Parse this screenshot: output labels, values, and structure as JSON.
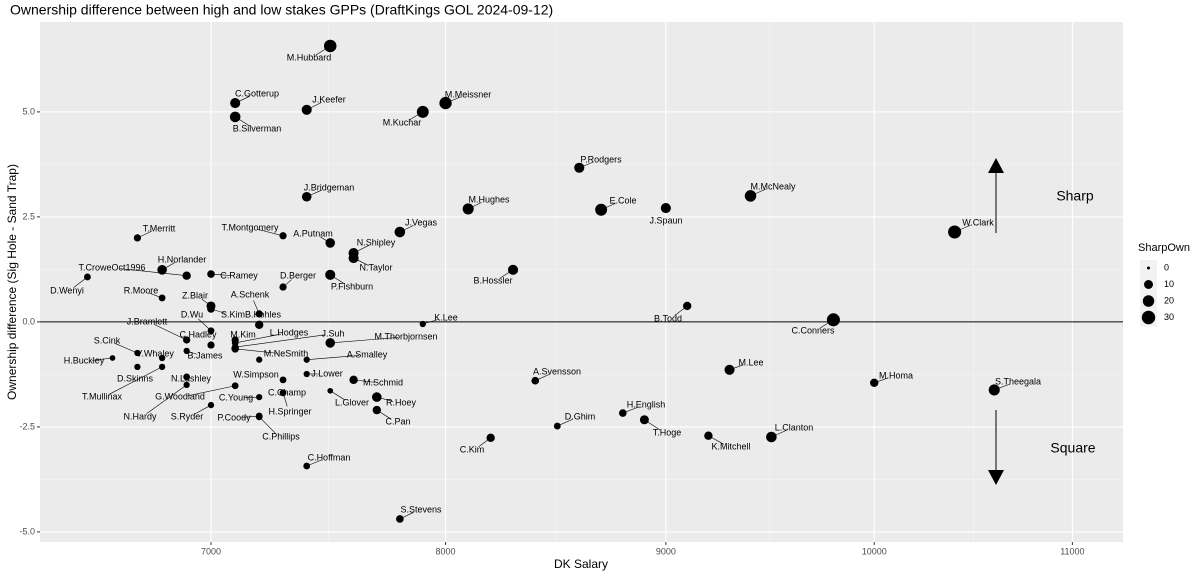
{
  "chart_data": {
    "type": "scatter",
    "title": "Ownership difference between high and low stakes GPPs (DraftKings GOL 2024-09-12)",
    "x_label": "DK Salary",
    "y_label": "Ownership difference (Sig Hole - Sand Trap)",
    "xscale": "sqrt",
    "xlim": [
      6313,
      11263
    ],
    "ylim": [
      -5.24,
      7.14
    ],
    "xticks": [
      7000,
      8000,
      9000,
      10000,
      11000
    ],
    "yticks": [
      {
        "value": -5,
        "label": "-5.0"
      },
      {
        "value": -2.5,
        "label": "-2.5"
      },
      {
        "value": 0,
        "label": "0.0"
      },
      {
        "value": 2.5,
        "label": "2.5"
      },
      {
        "value": 5,
        "label": "5.0"
      }
    ],
    "grid": true,
    "hline": 0,
    "color": "#000000",
    "legend_position": "right",
    "size_legend": {
      "title": "SharpOwn",
      "values": [
        0,
        10,
        20,
        30
      ]
    },
    "annotations": [
      "Sharp",
      "Square"
    ],
    "labels": [
      "M.Hubbard",
      "C.Gotterup",
      "J.Keefer",
      "B.Silverman",
      "M.Kuchar",
      "M.Meissner",
      "P.Rodgers",
      "J.Bridgeman",
      "M.McNealy",
      "E.Cole",
      "J.Spaun",
      "M.Hughes",
      "W.Clark",
      "T.Merritt",
      "T.Montgomery",
      "J.Vegas",
      "A.Putnam",
      "N.Shipley",
      "N.Taylor",
      "B.Hossler",
      "H.Norlander",
      "T.CroweOct1996",
      "C.Ramey",
      "D.Berger",
      "P.Fishburn",
      "D.Wenyi",
      "R.Moore",
      "Z.Blair",
      "S.Kim",
      "A.Schenk",
      "B.Kohles",
      "B.Todd",
      "C.Conners",
      "K.Lee",
      "D.Wu",
      "J.Bramlett",
      "C.Hadley",
      "M.Kim",
      "L.Hodges",
      "J.Suh",
      "M.Thorbjornsen",
      "M.NeSmith",
      "B.James",
      "S.Cink",
      "V.Whaley",
      "H.Buckley",
      "A.Smalley",
      "W.Simpson",
      "J.Lower",
      "D.Skinns",
      "N.Lashley",
      "M.Schmid",
      "A.Svensson",
      "M.Lee",
      "M.Homa",
      "S.Theegala",
      "T.Mullinax",
      "G.Woodland",
      "C.Young",
      "C.Champ",
      "H.Springer",
      "L.Glover",
      "R.Hoey",
      "N.Hardy",
      "S.Ryder",
      "P.Coody",
      "C.Pan",
      "D.Ghim",
      "H.English",
      "T.Hoge",
      "K.Mitchell",
      "L.Clanton",
      "C.Kim",
      "C.Phillips",
      "C.Hoffman",
      "S.Stevens"
    ],
    "x": [
      7500,
      7100,
      7400,
      7100,
      7900,
      8000,
      8600,
      7400,
      9400,
      8700,
      9000,
      8100,
      10400,
      6700,
      7300,
      7800,
      7500,
      7600,
      7600,
      8300,
      6800,
      6900,
      7000,
      7300,
      7500,
      6500,
      6800,
      7000,
      7000,
      7200,
      7200,
      9100,
      9800,
      7900,
      7000,
      6900,
      7000,
      7100,
      7100,
      7100,
      7500,
      7100,
      6900,
      6700,
      6800,
      6600,
      7400,
      7200,
      7400,
      6700,
      6900,
      7600,
      8400,
      9300,
      10000,
      10600,
      6800,
      7100,
      7200,
      7300,
      7300,
      7500,
      7700,
      6900,
      7000,
      7200,
      7700,
      8500,
      8800,
      8900,
      9200,
      9500,
      8200,
      7200,
      7400,
      7800
    ],
    "values": [
      6.57,
      5.21,
      5.05,
      4.88,
      5.0,
      5.21,
      3.67,
      2.98,
      3.0,
      2.67,
      2.71,
      2.69,
      2.14,
      2.0,
      2.05,
      2.14,
      1.88,
      1.64,
      1.52,
      1.24,
      1.24,
      1.1,
      1.14,
      0.83,
      1.12,
      1.07,
      0.57,
      0.38,
      0.31,
      0.19,
      -0.07,
      0.38,
      0.05,
      -0.05,
      -0.21,
      -0.43,
      -0.55,
      -0.43,
      -0.5,
      -0.6,
      -0.5,
      -0.64,
      -0.69,
      -0.74,
      -0.86,
      -0.86,
      -0.9,
      -0.9,
      -1.24,
      -1.07,
      -1.31,
      -1.38,
      -1.4,
      -1.14,
      -1.45,
      -1.62,
      -1.07,
      -1.52,
      -1.79,
      -1.38,
      -1.69,
      -1.64,
      -1.79,
      -1.5,
      -1.98,
      -2.24,
      -2.1,
      -2.48,
      -2.17,
      -2.33,
      -2.71,
      -2.74,
      -2.76,
      -2.26,
      -3.43,
      -4.69
    ],
    "sizes": [
      25,
      14,
      14,
      16,
      22,
      24,
      14,
      12,
      20,
      22,
      14,
      18,
      28,
      5,
      5,
      16,
      12,
      14,
      14,
      14,
      12,
      8,
      6,
      5,
      14,
      4,
      4,
      10,
      6,
      5,
      8,
      8,
      28,
      3,
      4,
      5,
      5,
      5,
      4,
      4,
      12,
      6,
      3,
      3,
      3,
      2,
      3,
      3,
      3,
      3,
      4,
      8,
      6,
      14,
      8,
      18,
      3,
      4,
      3,
      4,
      4,
      2,
      12,
      3,
      3,
      4,
      8,
      4,
      6,
      10,
      8,
      16,
      8,
      4,
      4,
      6
    ]
  }
}
